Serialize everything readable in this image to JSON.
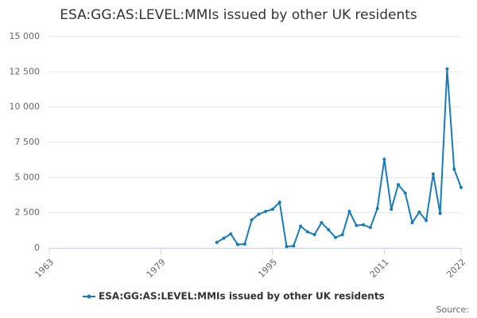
{
  "chart_data": {
    "type": "line",
    "title": "ESA:GG:AS:LEVEL:MMIs issued by other UK residents",
    "x": [
      1987,
      1988,
      1989,
      1990,
      1991,
      1992,
      1993,
      1994,
      1995,
      1996,
      1997,
      1998,
      1999,
      2000,
      2001,
      2002,
      2003,
      2004,
      2005,
      2006,
      2007,
      2008,
      2009,
      2010,
      2011,
      2012,
      2013,
      2014,
      2015,
      2016,
      2017,
      2018,
      2019,
      2020,
      2021,
      2022
    ],
    "series": [
      {
        "name": "ESA:GG:AS:LEVEL:MMIs issued by other UK residents",
        "color": "#1a7bb9",
        "values": [
          400,
          700,
          1000,
          250,
          280,
          2000,
          2400,
          2600,
          2750,
          3250,
          100,
          150,
          1550,
          1150,
          950,
          1800,
          1300,
          750,
          950,
          2600,
          1600,
          1650,
          1450,
          2800,
          6300,
          2750,
          4500,
          3900,
          1800,
          2550,
          1950,
          5250,
          2450,
          12700,
          5600,
          4300
        ]
      }
    ],
    "xlim": [
      1963,
      2022
    ],
    "xticks": [
      1963,
      1979,
      1995,
      2011,
      2022
    ],
    "ylim": [
      0,
      15000
    ],
    "yticks": [
      0,
      {
        "value": 2500,
        "label": "2 500"
      },
      {
        "value": 5000,
        "label": "5 000"
      },
      {
        "value": 7500,
        "label": "7 500"
      },
      {
        "value": 10000,
        "label": "10 000"
      },
      {
        "value": 12500,
        "label": "12 500"
      },
      {
        "value": 15000,
        "label": "15 000"
      }
    ],
    "grid": true,
    "source": "Source:"
  }
}
